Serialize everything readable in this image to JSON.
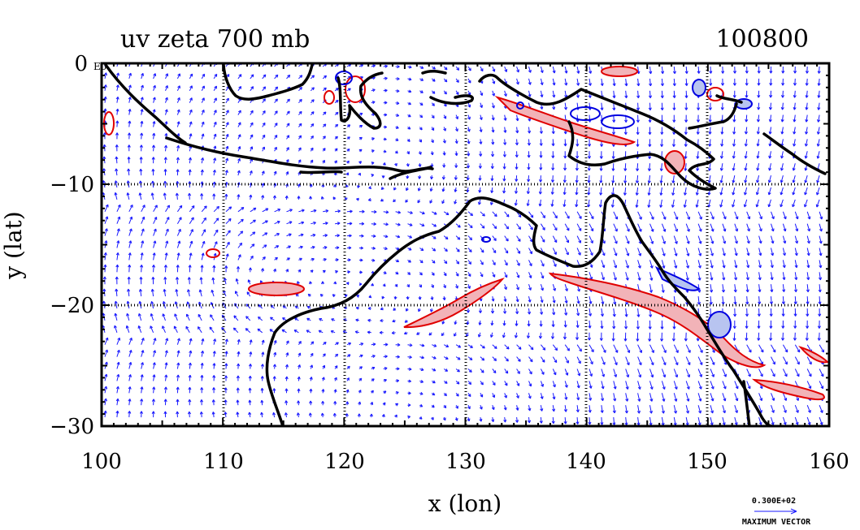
{
  "title_left": "uv zeta 700 mb",
  "title_right": "100800",
  "corner_label": "E0",
  "xlabel": "x (lon)",
  "ylabel": "y (lat)",
  "x_ticks": [
    "100",
    "110",
    "120",
    "130",
    "140",
    "150",
    "160"
  ],
  "y_ticks": [
    "0",
    "−10",
    "−20",
    "−30"
  ],
  "x_range": [
    100,
    160
  ],
  "y_range": [
    -30,
    0
  ],
  "legend": {
    "vector_value": "0.300E+02",
    "vector_label": "MAXIMUM VECTOR"
  },
  "colors": {
    "vector": "#1a1aff",
    "positive_contour": "#e00000",
    "positive_fill": "#f2b3b8",
    "negative_contour": "#0000e0",
    "negative_fill": "#b8c4f0",
    "coast": "#000000"
  }
}
